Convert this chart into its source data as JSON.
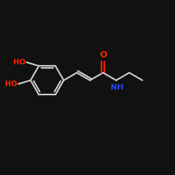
{
  "bg_color": "#111111",
  "bond_color": "#cccccc",
  "o_color": "#ff2200",
  "n_color": "#2244ff",
  "lw": 1.6,
  "figsize": [
    2.5,
    2.5
  ],
  "dpi": 100,
  "xlim": [
    -1,
    11
  ],
  "ylim": [
    -1,
    9
  ]
}
